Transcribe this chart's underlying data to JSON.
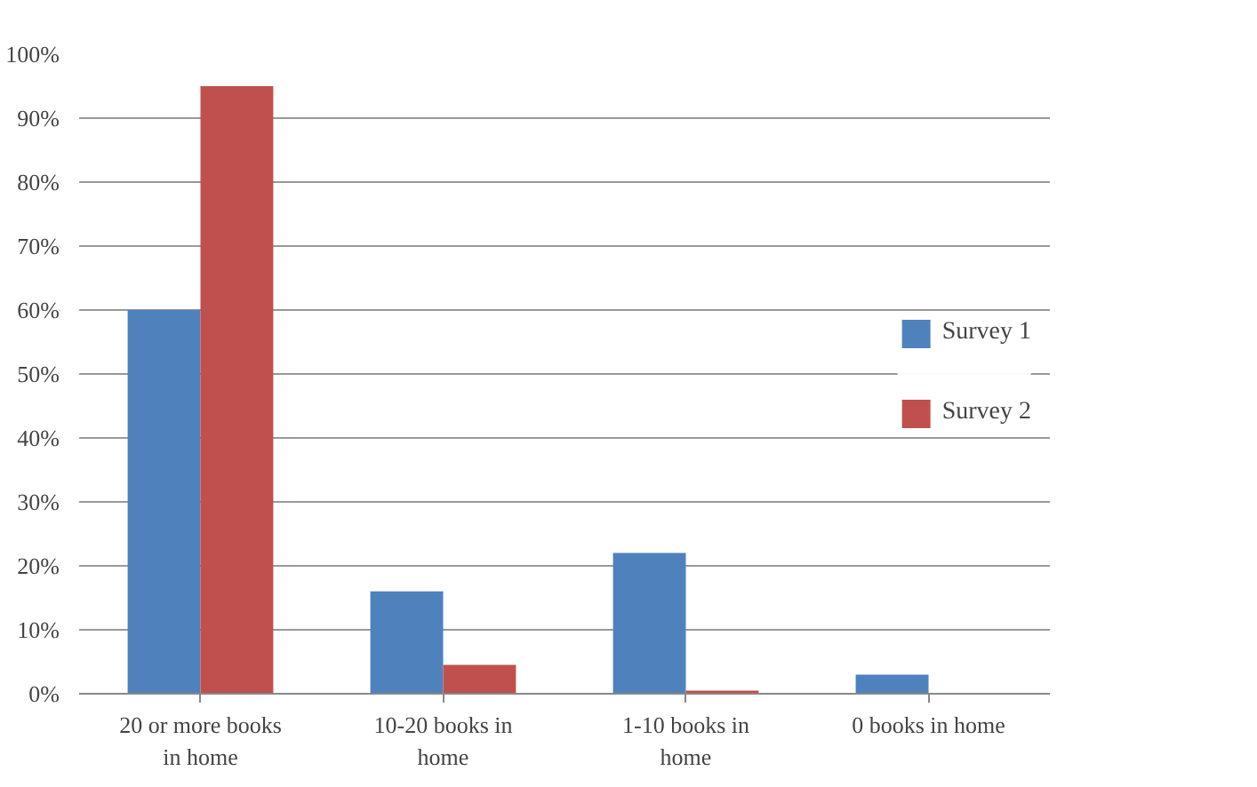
{
  "chart_data": {
    "type": "bar",
    "categories": [
      "20 or more books in home",
      "10-20 books in home",
      "1-10 books in home",
      "0 books in home"
    ],
    "series": [
      {
        "name": "Survey 1",
        "color": "#4f81bd",
        "values": [
          60,
          16,
          22,
          3
        ]
      },
      {
        "name": "Survey 2",
        "color": "#c0504d",
        "values": [
          95,
          4.5,
          0.5,
          0
        ]
      }
    ],
    "ylim": [
      0,
      100
    ],
    "yticks": [
      {
        "value": 0,
        "label": "0%"
      },
      {
        "value": 10,
        "label": "10%"
      },
      {
        "value": 20,
        "label": "20%"
      },
      {
        "value": 30,
        "label": "30%"
      },
      {
        "value": 40,
        "label": "40%"
      },
      {
        "value": 50,
        "label": "50%"
      },
      {
        "value": 60,
        "label": "60%"
      },
      {
        "value": 70,
        "label": "70%"
      },
      {
        "value": 80,
        "label": "80%"
      },
      {
        "value": 90,
        "label": "90%"
      },
      {
        "value": 100,
        "label": "100%"
      }
    ],
    "grid": "y",
    "legend": "right"
  }
}
